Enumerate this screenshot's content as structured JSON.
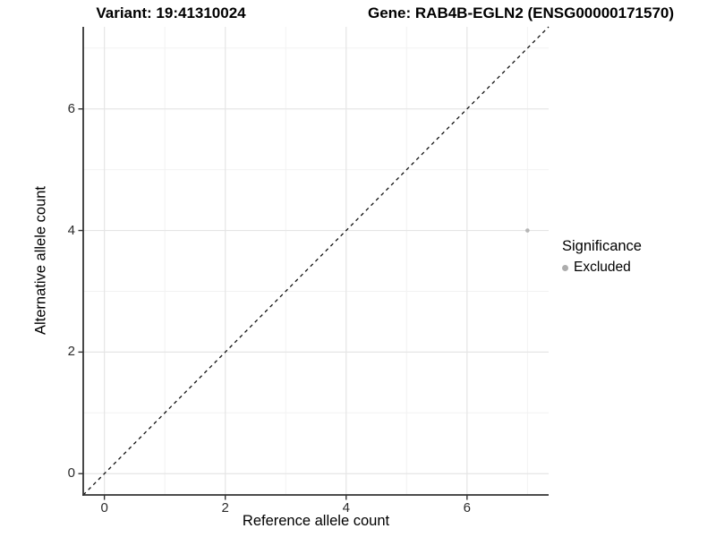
{
  "titles": {
    "variant": "Variant: 19:41310024",
    "gene": "Gene: RAB4B-EGLN2 (ENSG00000171570)"
  },
  "legend": {
    "title": "Significance",
    "items": [
      {
        "label": "Excluded",
        "color": "#adadad"
      }
    ]
  },
  "chart_data": {
    "type": "scatter",
    "title_left": "Variant: 19:41310024",
    "title_right": "Gene: RAB4B-EGLN2 (ENSG00000171570)",
    "xlabel": "Reference allele count",
    "ylabel": "Alternative allele count",
    "points": [
      {
        "x": 7,
        "y": 4,
        "group": "Excluded"
      }
    ],
    "series": [
      {
        "name": "Excluded",
        "points": [
          {
            "x": 7,
            "y": 4
          }
        ]
      }
    ],
    "xlim": [
      -0.35,
      7.35
    ],
    "ylim": [
      -0.35,
      7.35
    ],
    "x_ticks": [
      0,
      2,
      4,
      6
    ],
    "y_ticks": [
      0,
      2,
      4,
      6
    ],
    "x_minor_ticks": [
      1,
      3,
      5,
      7
    ],
    "y_minor_ticks": [
      1,
      3,
      5,
      7
    ],
    "identity_line": {
      "shown": true,
      "style": "dashed",
      "color": "#111111"
    },
    "grid": {
      "shown": true,
      "major_color": "#e5e5e5",
      "minor_color": "#f2f2f2"
    },
    "axis_line_color": "#333333",
    "point_color": "#b5b5b5",
    "point_radius": 2.3,
    "legend_position": "right"
  }
}
